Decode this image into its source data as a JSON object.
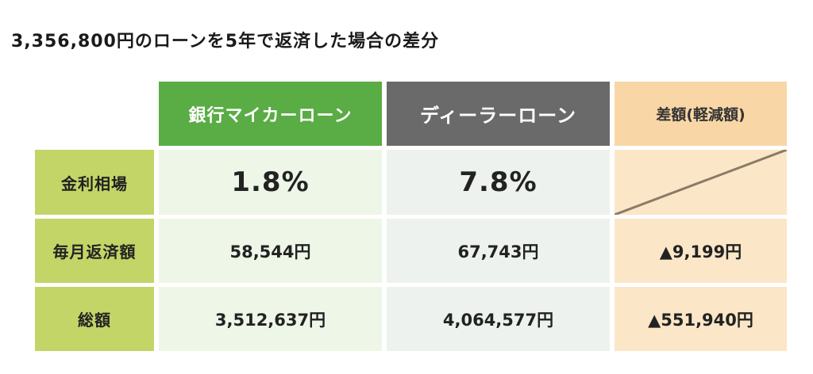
{
  "title": "3,356,800円のローンを5年で返済した場合の差分",
  "table": {
    "headers": {
      "bank": "銀行マイカーローン",
      "dealer": "ディーラーローン",
      "diff": "差額(軽減額)"
    },
    "rows": [
      {
        "label": "金利相場",
        "bank": "1.8%",
        "dealer": "7.8%",
        "diff": ""
      },
      {
        "label": "毎月返済額",
        "bank": "58,544円",
        "dealer": "67,743円",
        "diff": "▲9,199円"
      },
      {
        "label": "総額",
        "bank": "3,512,637円",
        "dealer": "4,064,577円",
        "diff": "▲551,940円"
      }
    ]
  },
  "colors": {
    "bank_header": "#5aac44",
    "dealer_header": "#6a6a6a",
    "diff_header": "#f8d6a6",
    "row_label": "#c3d567"
  }
}
